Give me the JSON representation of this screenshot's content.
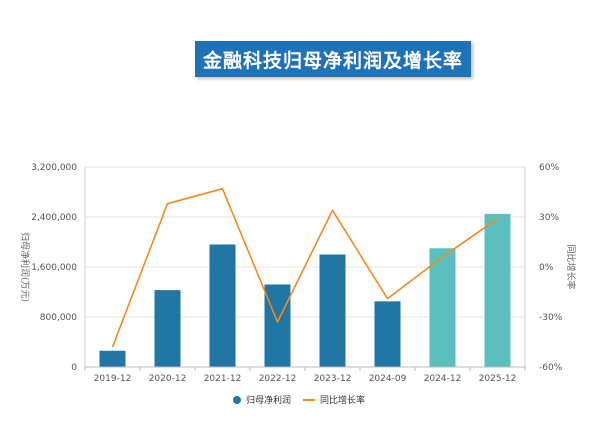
{
  "title": "金融科技归母净利润及增长率",
  "chart_data": {
    "type": "bar",
    "categories": [
      "2019-12",
      "2020-12",
      "2021-12",
      "2022-12",
      "2023-12",
      "2024-09",
      "2024-12",
      "2025-12"
    ],
    "series": [
      {
        "name": "归母净利润",
        "type": "bar",
        "axis": "left",
        "values": [
          260000,
          1230000,
          1960000,
          1320000,
          1800000,
          1050000,
          1900000,
          2450000
        ],
        "colors": [
          "#2176a3",
          "#2176a3",
          "#2176a3",
          "#2176a3",
          "#2176a3",
          "#2176a3",
          "#5cbfbf",
          "#5cbfbf"
        ]
      },
      {
        "name": "同比增长率",
        "type": "line",
        "axis": "right",
        "values": [
          -48,
          38,
          47,
          -33,
          34,
          -19,
          6,
          29
        ],
        "color": "#f08a1e"
      }
    ],
    "ylabel": "归母净利润(万元)",
    "y2label": "同比增长率",
    "ylim": [
      0,
      3200000
    ],
    "y2lim": [
      -60,
      60
    ],
    "yticks": [
      "0",
      "800,000",
      "1,600,000",
      "2,400,000",
      "3,200,000"
    ],
    "y2ticks": [
      "-60%",
      "-30%",
      "0%",
      "30%",
      "60%"
    ],
    "legend": "bottom-center",
    "grid": true
  }
}
